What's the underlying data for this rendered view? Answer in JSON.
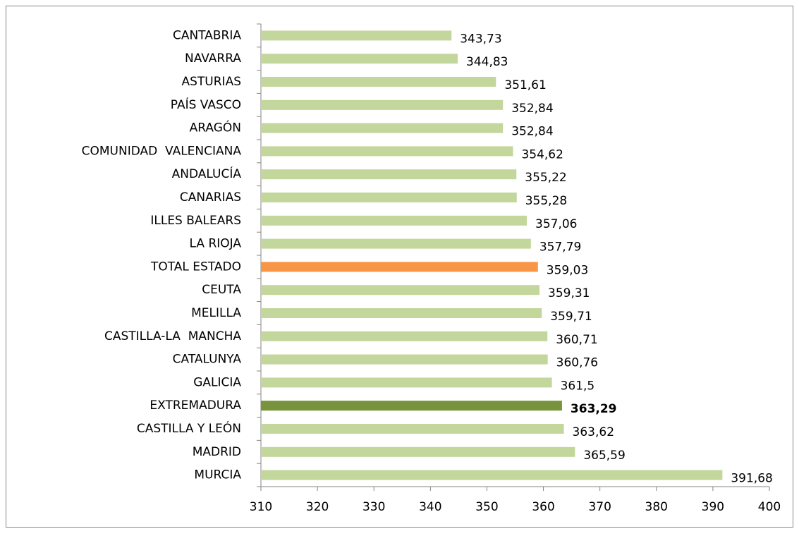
{
  "chart_data": {
    "type": "hbar",
    "categories": [
      "CANTABRIA",
      "NAVARRA",
      "ASTURIAS",
      "PAÍS VASCO",
      "ARAGÓN",
      "COMUNIDAD  VALENCIANA",
      "ANDALUCÍA",
      "CANARIAS",
      "ILLES BALEARS",
      "LA RIOJA",
      "TOTAL ESTADO",
      "CEUTA",
      "MELILLA",
      "CASTILLA-LA  MANCHA",
      "CATALUNYA",
      "GALICIA",
      "EXTREMADURA",
      "CASTILLA Y LEÓN",
      "MADRID",
      "MURCIA"
    ],
    "values": [
      343.73,
      344.83,
      351.61,
      352.84,
      352.84,
      354.62,
      355.22,
      355.28,
      357.06,
      357.79,
      359.03,
      359.31,
      359.71,
      360.71,
      360.76,
      361.5,
      363.29,
      363.62,
      365.59,
      391.68
    ],
    "value_labels": [
      "343,73",
      "344,83",
      "351,61",
      "352,84",
      "352,84",
      "354,62",
      "355,22",
      "355,28",
      "357,06",
      "357,79",
      "359,03",
      "359,31",
      "359,71",
      "360,71",
      "360,76",
      "361,5",
      "363,29",
      "363,62",
      "365,59",
      "391,68"
    ],
    "colors": [
      "#c3d69b",
      "#c3d69b",
      "#c3d69b",
      "#c3d69b",
      "#c3d69b",
      "#c3d69b",
      "#c3d69b",
      "#c3d69b",
      "#c3d69b",
      "#c3d69b",
      "#f79646",
      "#c3d69b",
      "#c3d69b",
      "#c3d69b",
      "#c3d69b",
      "#c3d69b",
      "#77933c",
      "#c3d69b",
      "#c3d69b",
      "#c3d69b"
    ],
    "value_label_weights": [
      "normal",
      "normal",
      "normal",
      "normal",
      "normal",
      "normal",
      "normal",
      "normal",
      "normal",
      "normal",
      "normal",
      "normal",
      "normal",
      "normal",
      "normal",
      "normal",
      "bold",
      "normal",
      "normal",
      "normal"
    ],
    "xlim": [
      310,
      400
    ],
    "xticks": [
      310,
      320,
      330,
      340,
      350,
      360,
      370,
      380,
      390,
      400
    ]
  }
}
